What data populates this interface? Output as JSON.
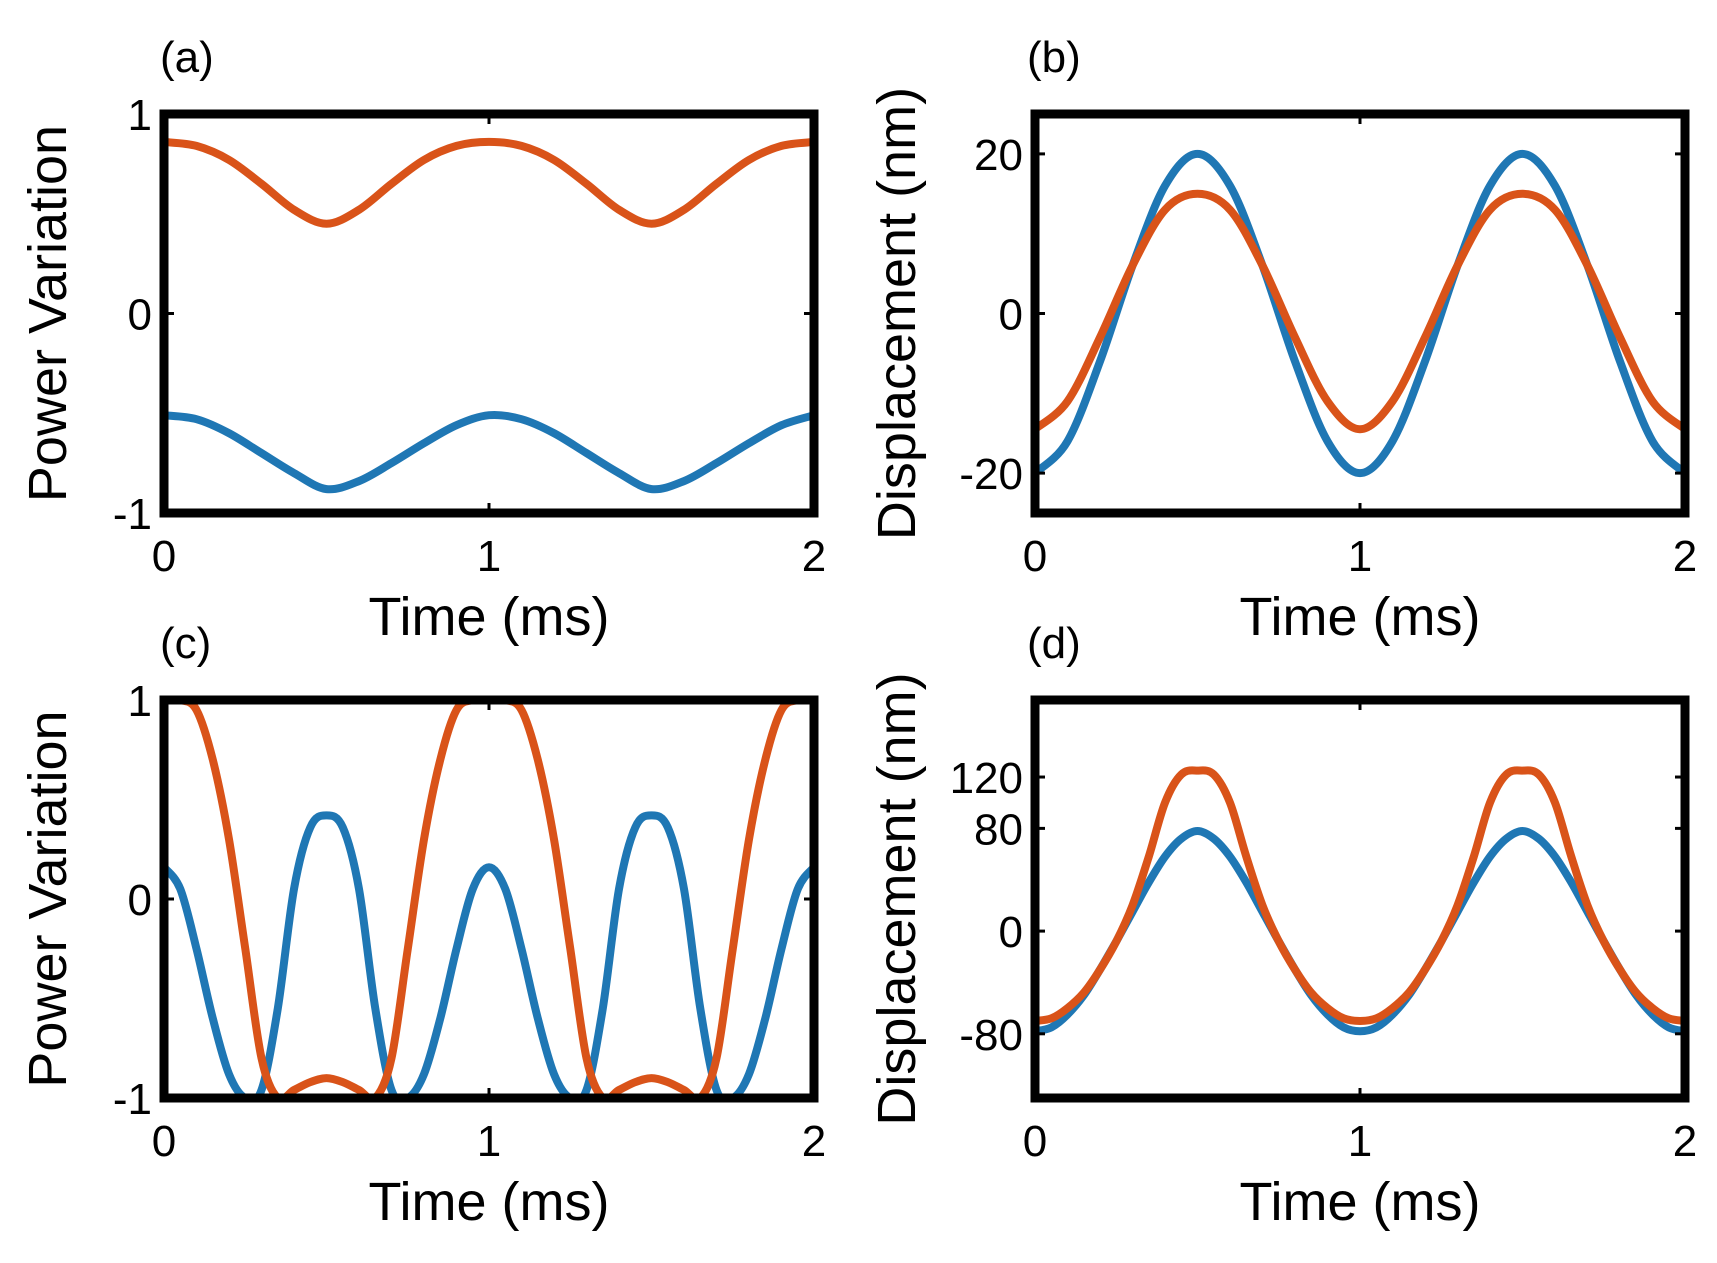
{
  "colors": {
    "blue": "#1f77b4",
    "orange": "#d95319",
    "frame": "#000000"
  },
  "chart_data": [
    {
      "id": "a",
      "type": "line",
      "panel_label": "(a)",
      "xlabel": "Time (ms)",
      "ylabel": "Power Variation",
      "xlim": [
        0,
        2
      ],
      "ylim": [
        -1,
        1
      ],
      "xticks": [
        0,
        1,
        2
      ],
      "xtick_labels": [
        "0",
        "1",
        "2"
      ],
      "yticks": [
        -1,
        0,
        1
      ],
      "ytick_labels": [
        "-1",
        "0",
        "1"
      ],
      "x": [
        0,
        0.1,
        0.2,
        0.3,
        0.4,
        0.5,
        0.6,
        0.7,
        0.8,
        0.9,
        1.0,
        1.1,
        1.2,
        1.3,
        1.4,
        1.5,
        1.6,
        1.7,
        1.8,
        1.9,
        2.0
      ],
      "series": [
        {
          "name": "blue",
          "color": "#1f77b4",
          "values": [
            -0.51,
            -0.53,
            -0.6,
            -0.7,
            -0.8,
            -0.88,
            -0.84,
            -0.75,
            -0.65,
            -0.56,
            -0.51,
            -0.53,
            -0.6,
            -0.7,
            -0.8,
            -0.88,
            -0.84,
            -0.75,
            -0.65,
            -0.56,
            -0.51
          ]
        },
        {
          "name": "orange",
          "color": "#d95319",
          "values": [
            0.86,
            0.84,
            0.77,
            0.65,
            0.52,
            0.45,
            0.52,
            0.65,
            0.77,
            0.84,
            0.86,
            0.84,
            0.77,
            0.65,
            0.52,
            0.45,
            0.52,
            0.65,
            0.77,
            0.84,
            0.86
          ]
        }
      ]
    },
    {
      "id": "b",
      "type": "line",
      "panel_label": "(b)",
      "xlabel": "Time (ms)",
      "ylabel": "Displacement (nm)",
      "xlim": [
        0,
        2
      ],
      "ylim": [
        -25,
        25
      ],
      "xticks": [
        0,
        1,
        2
      ],
      "xtick_labels": [
        "0",
        "1",
        "2"
      ],
      "yticks": [
        -20,
        0,
        20
      ],
      "ytick_labels": [
        "-20",
        "0",
        "20"
      ],
      "x": [
        0,
        0.1,
        0.2,
        0.3,
        0.4,
        0.5,
        0.6,
        0.7,
        0.8,
        0.9,
        1.0,
        1.1,
        1.2,
        1.3,
        1.4,
        1.5,
        1.6,
        1.7,
        1.8,
        1.9,
        2.0
      ],
      "series": [
        {
          "name": "blue",
          "color": "#1f77b4",
          "values": [
            -20,
            -16,
            -6,
            6,
            16,
            20,
            16,
            6,
            -6,
            -16,
            -20,
            -16,
            -6,
            6,
            16,
            20,
            16,
            6,
            -6,
            -16,
            -20
          ]
        },
        {
          "name": "orange",
          "color": "#d95319",
          "values": [
            -14.5,
            -11,
            -3,
            6,
            13,
            15,
            13,
            6,
            -3,
            -11,
            -14.5,
            -11,
            -3,
            6,
            13,
            15,
            13,
            6,
            -3,
            -11,
            -14.5
          ]
        }
      ]
    },
    {
      "id": "c",
      "type": "line",
      "panel_label": "(c)",
      "xlabel": "Time (ms)",
      "ylabel": "Power Variation",
      "xlim": [
        0,
        2
      ],
      "ylim": [
        -1,
        1
      ],
      "xticks": [
        0,
        1,
        2
      ],
      "xtick_labels": [
        "0",
        "1",
        "2"
      ],
      "yticks": [
        -1,
        0,
        1
      ],
      "ytick_labels": [
        "-1",
        "0",
        "1"
      ],
      "x": [
        0,
        0.05,
        0.1,
        0.15,
        0.2,
        0.25,
        0.3,
        0.35,
        0.4,
        0.45,
        0.5,
        0.55,
        0.6,
        0.65,
        0.7,
        0.75,
        0.8,
        0.85,
        0.9,
        0.95,
        1.0,
        1.05,
        1.1,
        1.15,
        1.2,
        1.25,
        1.3,
        1.35,
        1.4,
        1.45,
        1.5,
        1.55,
        1.6,
        1.65,
        1.7,
        1.75,
        1.8,
        1.85,
        1.9,
        1.95,
        2.0
      ],
      "series": [
        {
          "name": "blue",
          "color": "#1f77b4",
          "values": [
            0.16,
            0.05,
            -0.25,
            -0.6,
            -0.88,
            -1.0,
            -0.96,
            -0.55,
            0.05,
            0.36,
            0.42,
            0.36,
            0.05,
            -0.55,
            -0.96,
            -1.0,
            -0.88,
            -0.6,
            -0.25,
            0.05,
            0.16,
            0.05,
            -0.25,
            -0.6,
            -0.88,
            -1.0,
            -0.96,
            -0.55,
            0.05,
            0.36,
            0.42,
            0.36,
            0.05,
            -0.55,
            -0.96,
            -1.0,
            -0.88,
            -0.6,
            -0.25,
            0.05,
            0.16
          ]
        },
        {
          "name": "orange",
          "color": "#d95319",
          "values": [
            1.0,
            1.0,
            0.95,
            0.7,
            0.3,
            -0.25,
            -0.8,
            -1.0,
            -0.96,
            -0.92,
            -0.9,
            -0.92,
            -0.96,
            -1.0,
            -0.8,
            -0.25,
            0.3,
            0.7,
            0.95,
            1.0,
            1.0,
            1.0,
            0.95,
            0.7,
            0.3,
            -0.25,
            -0.8,
            -1.0,
            -0.96,
            -0.92,
            -0.9,
            -0.92,
            -0.96,
            -1.0,
            -0.8,
            -0.25,
            0.3,
            0.7,
            0.95,
            1.0,
            1.0
          ]
        }
      ]
    },
    {
      "id": "d",
      "type": "line",
      "panel_label": "(d)",
      "xlabel": "Time (ms)",
      "ylabel": "Displacement (nm)",
      "xlim": [
        0,
        2
      ],
      "ylim": [
        -130,
        180
      ],
      "xticks": [
        0,
        1,
        2
      ],
      "xtick_labels": [
        "0",
        "1",
        "2"
      ],
      "yticks": [
        -80,
        0,
        80,
        120
      ],
      "ytick_labels": [
        "-80",
        "0",
        "80",
        "120"
      ],
      "x": [
        0,
        0.05,
        0.1,
        0.15,
        0.2,
        0.25,
        0.3,
        0.35,
        0.4,
        0.45,
        0.5,
        0.55,
        0.6,
        0.65,
        0.7,
        0.75,
        0.8,
        0.85,
        0.9,
        0.95,
        1.0,
        1.05,
        1.1,
        1.15,
        1.2,
        1.25,
        1.3,
        1.35,
        1.4,
        1.45,
        1.5,
        1.55,
        1.6,
        1.65,
        1.7,
        1.75,
        1.8,
        1.85,
        1.9,
        1.95,
        2.0
      ],
      "series": [
        {
          "name": "blue",
          "color": "#1f77b4",
          "values": [
            -78,
            -75,
            -65,
            -50,
            -30,
            -8,
            15,
            38,
            58,
            72,
            78,
            72,
            58,
            38,
            15,
            -8,
            -30,
            -50,
            -65,
            -75,
            -78,
            -75,
            -65,
            -50,
            -30,
            -8,
            15,
            38,
            58,
            72,
            78,
            72,
            58,
            38,
            15,
            -8,
            -30,
            -50,
            -65,
            -75,
            -78
          ]
        },
        {
          "name": "orange",
          "color": "#d95319",
          "values": [
            -70,
            -68,
            -60,
            -48,
            -30,
            -8,
            20,
            58,
            100,
            122,
            125,
            122,
            100,
            58,
            20,
            -8,
            -30,
            -48,
            -60,
            -68,
            -70,
            -68,
            -60,
            -48,
            -30,
            -8,
            20,
            58,
            100,
            122,
            125,
            122,
            100,
            58,
            20,
            -8,
            -30,
            -48,
            -60,
            -68,
            -70
          ]
        }
      ]
    }
  ]
}
